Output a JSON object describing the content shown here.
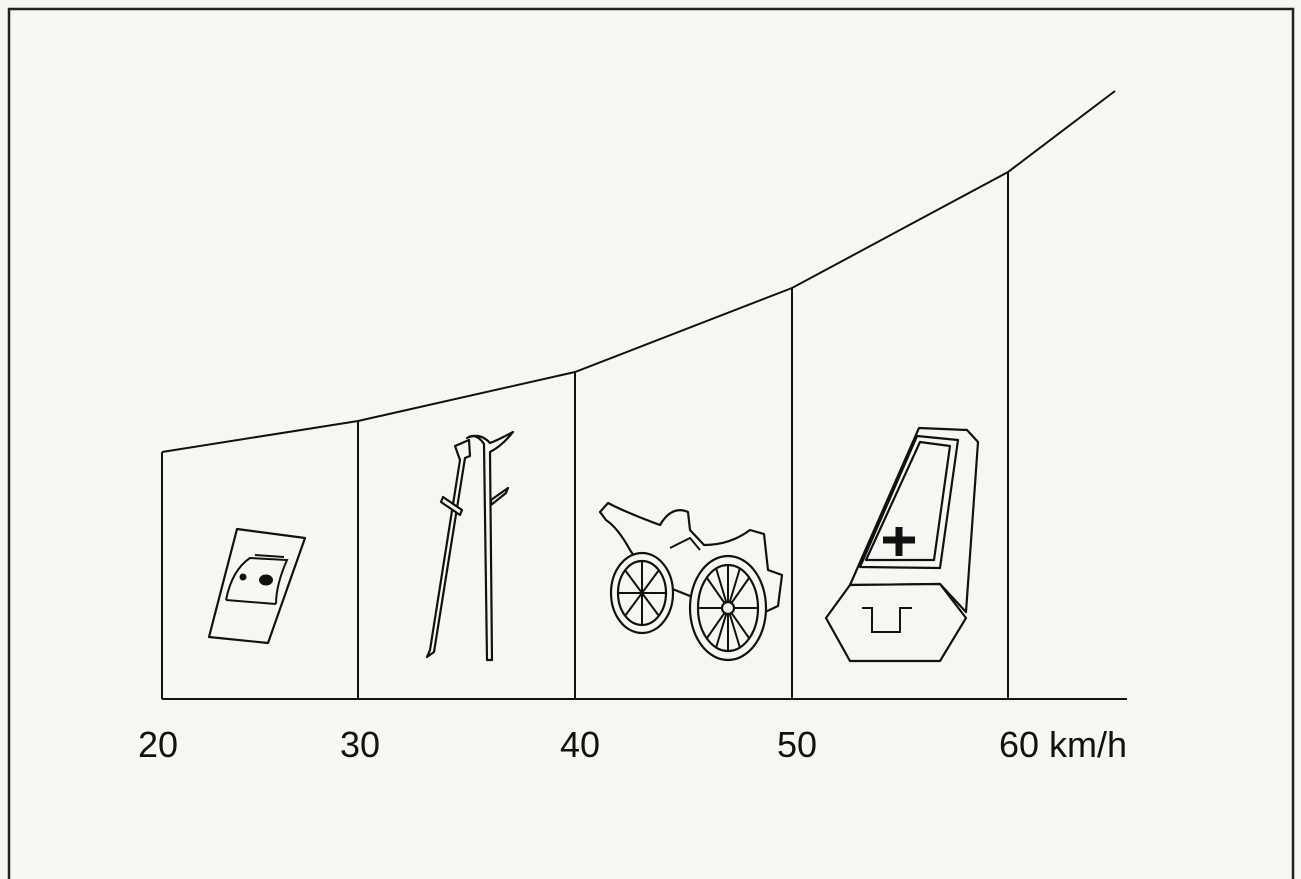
{
  "axis": {
    "labels": [
      "20",
      "30",
      "40",
      "50",
      "60 km/h"
    ]
  }
}
